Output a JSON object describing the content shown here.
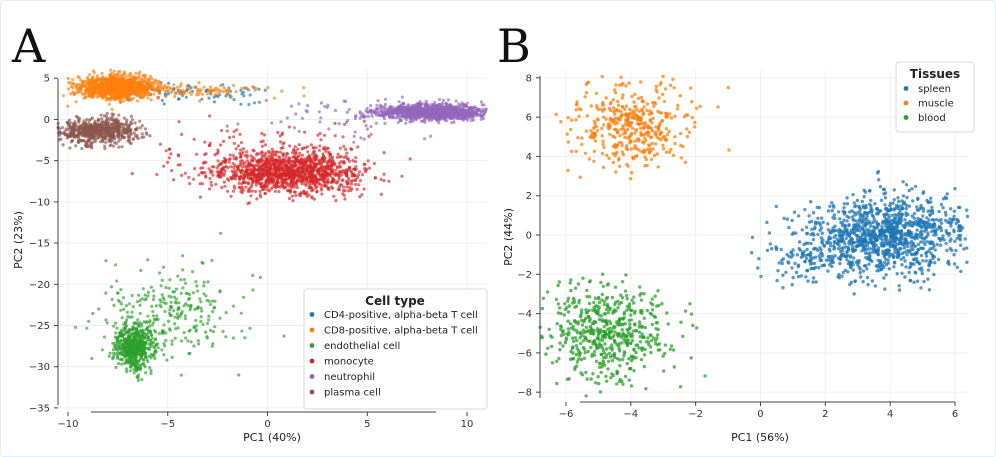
{
  "chart_data": [
    {
      "type": "scatter",
      "panel_label": "A",
      "xlabel": "PC1 (40%)",
      "ylabel": "PC2 (23%)",
      "xlim": [
        -10.5,
        11
      ],
      "ylim": [
        -35.5,
        6
      ],
      "xticks": [
        -10,
        -5,
        0,
        5,
        10
      ],
      "yticks": [
        5,
        0,
        -5,
        -10,
        -15,
        -20,
        -25,
        -30,
        -35
      ],
      "grid": true,
      "legend": {
        "title": "Cell type",
        "position": "bottom-right"
      },
      "series": [
        {
          "name": "CD4-positive, alpha-beta T cell",
          "color": "#1f77b4",
          "clusters": [
            {
              "cx": -6.5,
              "cy": 3.5,
              "sx": 4.0,
              "sy": 0.55,
              "n": 90,
              "shape": "band",
              "x0": -8,
              "x1": 0
            }
          ]
        },
        {
          "name": "CD8-positive, alpha-beta T cell",
          "color": "#ff7f0e",
          "clusters": [
            {
              "cx": -7.6,
              "cy": 3.9,
              "sx": 0.9,
              "sy": 0.7,
              "n": 1100
            },
            {
              "cx": -4.0,
              "cy": 3.4,
              "sx": 2.5,
              "sy": 0.4,
              "n": 120
            }
          ]
        },
        {
          "name": "endothelial cell",
          "color": "#2ca02c",
          "clusters": [
            {
              "cx": -6.7,
              "cy": -27.6,
              "sx": 0.5,
              "sy": 1.4,
              "n": 550
            },
            {
              "cx": -5.0,
              "cy": -24.0,
              "sx": 2.0,
              "sy": 3.2,
              "n": 260
            }
          ]
        },
        {
          "name": "monocyte",
          "color": "#d62728",
          "clusters": [
            {
              "cx": 1.0,
              "cy": -6.4,
              "sx": 1.9,
              "sy": 1.3,
              "n": 1300
            },
            {
              "cx": -0.5,
              "cy": -3.5,
              "sx": 3.0,
              "sy": 1.6,
              "n": 80
            }
          ]
        },
        {
          "name": "neutrophil",
          "color": "#9467bd",
          "clusters": [
            {
              "cx": 8.3,
              "cy": 0.9,
              "sx": 1.4,
              "sy": 0.45,
              "n": 1100
            },
            {
              "cx": 4.0,
              "cy": 0.3,
              "sx": 2.5,
              "sy": 1.5,
              "n": 60
            }
          ]
        },
        {
          "name": "plasma cell",
          "color": "#8c564b",
          "clusters": [
            {
              "cx": -8.6,
              "cy": -1.4,
              "sx": 1.0,
              "sy": 0.8,
              "n": 650
            }
          ]
        }
      ]
    },
    {
      "type": "scatter",
      "panel_label": "B",
      "xlabel": "PC1 (56%)",
      "ylabel": "PC2 (44%)",
      "xlim": [
        -6.8,
        6.4
      ],
      "ylim": [
        -8.5,
        8.4
      ],
      "xticks": [
        -6,
        -4,
        -2,
        0,
        2,
        4,
        6
      ],
      "yticks": [
        8,
        6,
        4,
        2,
        0,
        -2,
        -4,
        -6,
        -8
      ],
      "grid": true,
      "legend": {
        "title": "Tissues",
        "position": "top-right"
      },
      "series": [
        {
          "name": "spleen",
          "color": "#1f77b4",
          "clusters": [
            {
              "cx": 3.9,
              "cy": 0.0,
              "sx": 1.2,
              "sy": 1.0,
              "n": 1100
            },
            {
              "cx": 1.8,
              "cy": -1.2,
              "sx": 0.9,
              "sy": 0.7,
              "n": 140
            }
          ]
        },
        {
          "name": "muscle",
          "color": "#ff7f0e",
          "clusters": [
            {
              "cx": -4.0,
              "cy": 5.6,
              "sx": 0.9,
              "sy": 1.1,
              "n": 420
            }
          ]
        },
        {
          "name": "blood",
          "color": "#2ca02c",
          "clusters": [
            {
              "cx": -4.7,
              "cy": -5.0,
              "sx": 0.9,
              "sy": 1.15,
              "n": 560
            }
          ]
        }
      ]
    }
  ]
}
